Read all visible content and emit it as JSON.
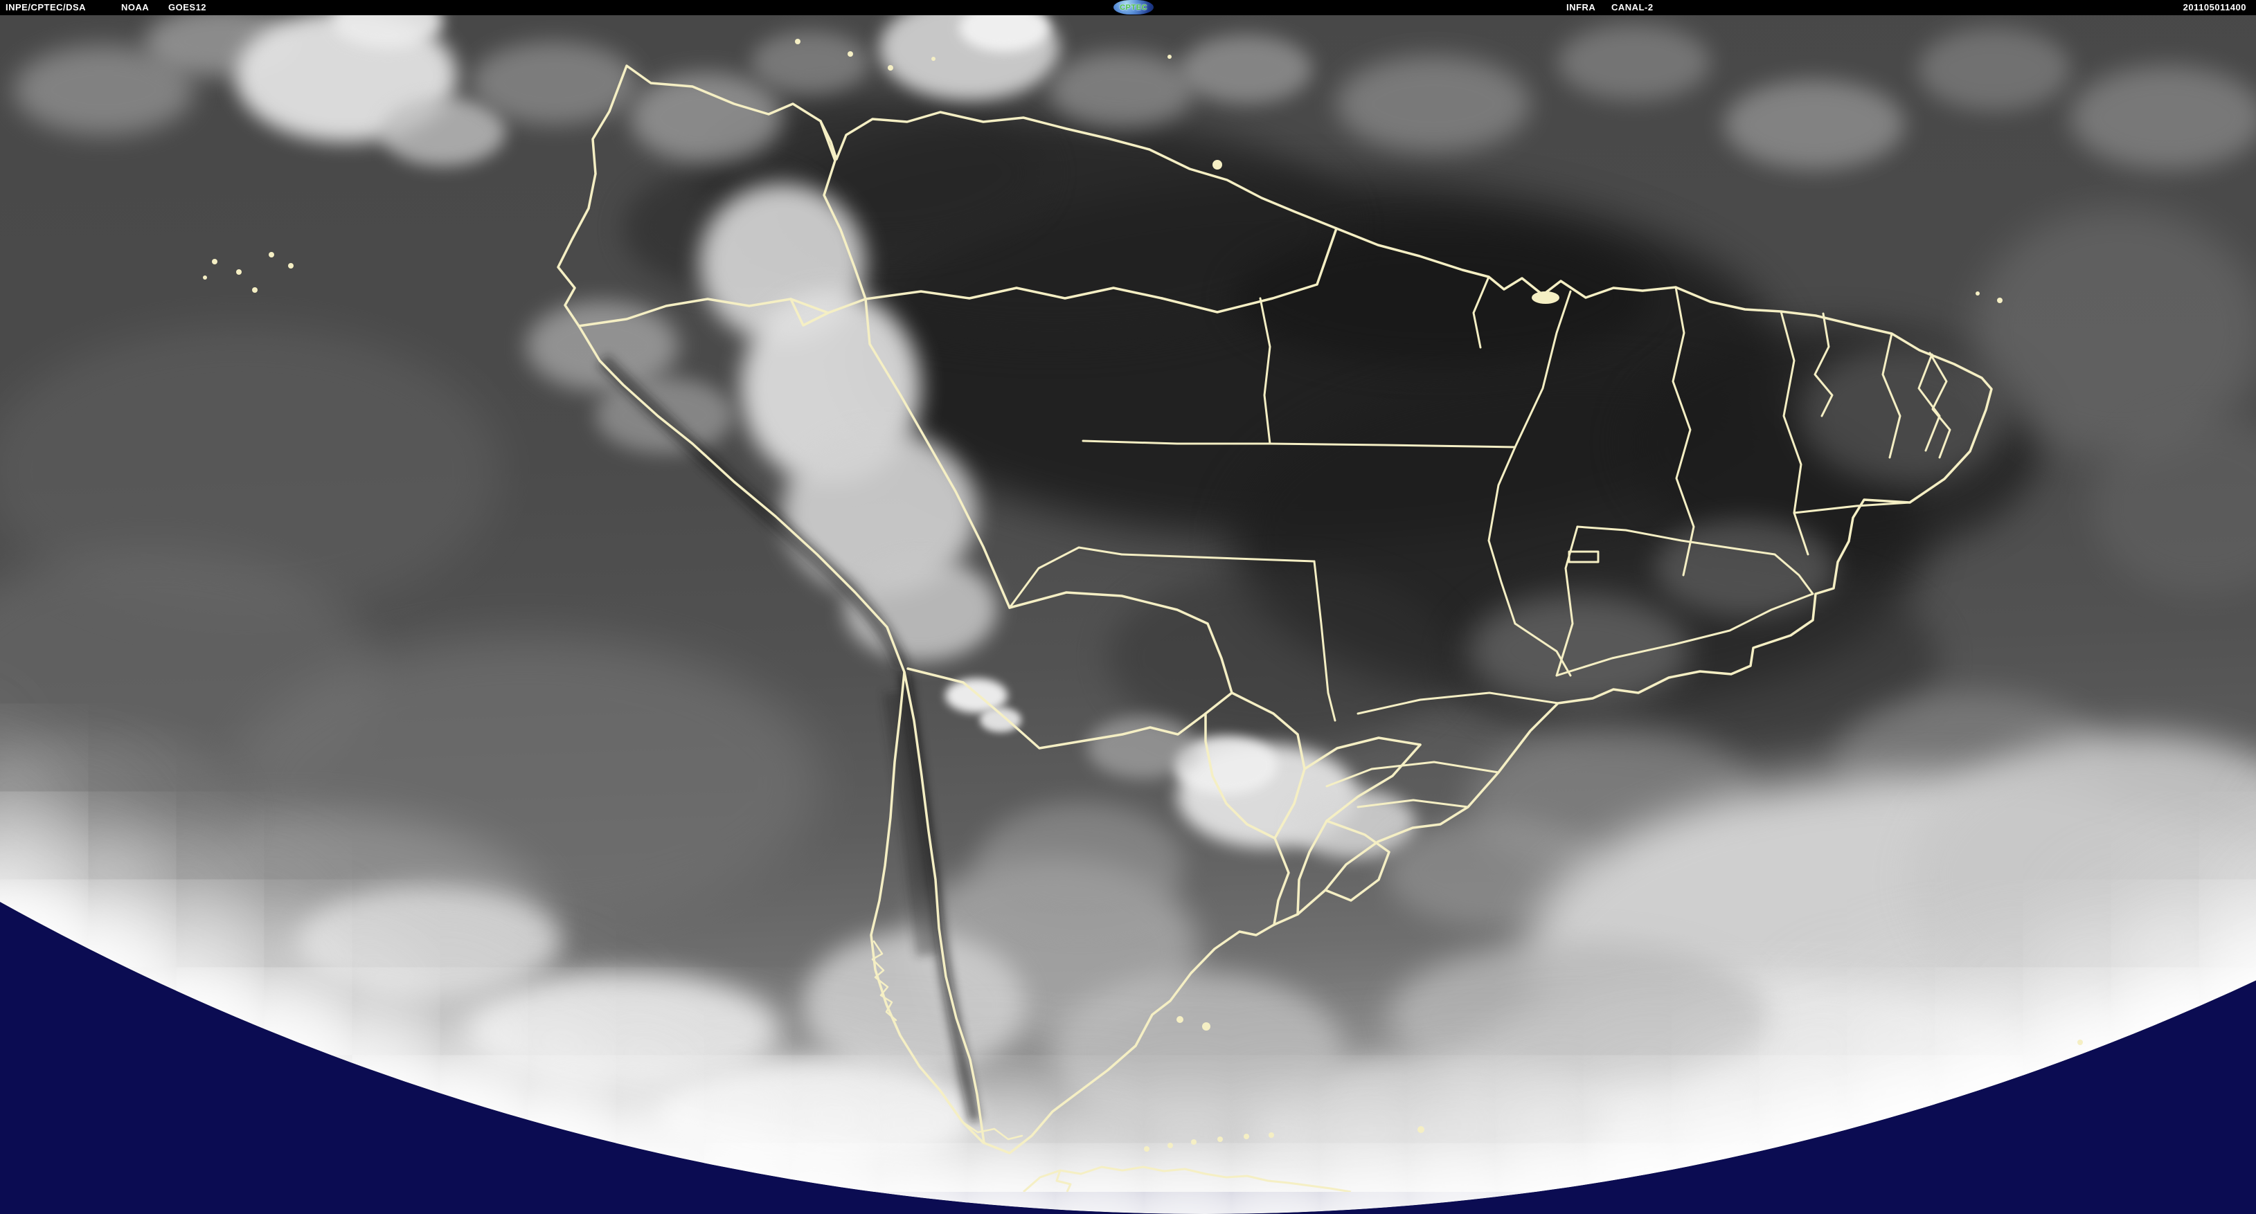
{
  "header": {
    "left": {
      "agency": "INPE/CPTEC/DSA",
      "operator": "NOAA",
      "satellite": "GOES12"
    },
    "logo": {
      "text": "CPTEC"
    },
    "right": {
      "band": "INFRA",
      "channel": "CANAL-2",
      "timestamp": "201105011400"
    }
  },
  "scene": {
    "description": "GOES-12 infrared (canal 2) satellite view of South America; grayscale clouds and sea, very dark warm land, pale-yellow country and Brazilian state boundary overlay, bright Earth limb arc against deep navy space in the lower corners.",
    "colors": {
      "space": "#0b0c52",
      "border_lines": "#f5efc4",
      "header_bg": "#000000",
      "header_text": "#ffffff",
      "logo_text_green": "#4cbf4b",
      "ocean_gray": "#555555",
      "land_dark": "#1d1d1d",
      "cloud_white": "#e8e8e8"
    }
  }
}
